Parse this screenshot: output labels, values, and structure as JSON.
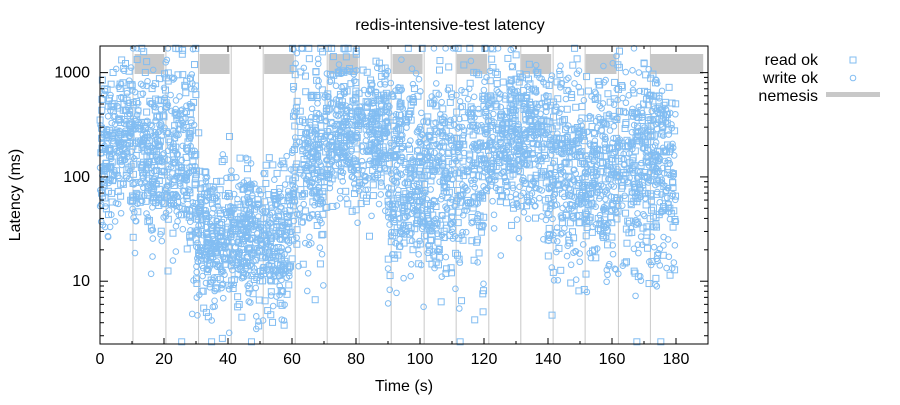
{
  "chart_data": {
    "type": "scatter",
    "title": "redis-intensive-test latency",
    "xlabel": "Time (s)",
    "ylabel": "Latency (ms)",
    "xlim": [
      0,
      190
    ],
    "ylim": [
      2.5,
      1800
    ],
    "yscale": "log",
    "x_ticks": [
      0,
      20,
      40,
      60,
      80,
      100,
      120,
      140,
      160,
      180
    ],
    "x_tick_labels": [
      "0",
      "20",
      "40",
      "60",
      "80",
      "100",
      "120",
      "140",
      "160",
      "180"
    ],
    "y_ticks": [
      10,
      100,
      1000
    ],
    "y_tick_labels": [
      "10",
      "100",
      "1000"
    ],
    "legend_position": "right",
    "grid": false,
    "nemesis_markers": [
      10.3,
      20.6,
      30.8,
      41.0,
      51.0,
      61.0,
      71.0,
      81.0,
      91.0,
      101.3,
      111.3,
      121.5,
      131.5,
      141.6,
      151.6,
      162.0,
      172.0
    ],
    "nemesis_intervals": [
      [
        10.8,
        20.1
      ],
      [
        31.1,
        40.5
      ],
      [
        51.3,
        60.6
      ],
      [
        71.4,
        80.6
      ],
      [
        91.4,
        100.8
      ],
      [
        111.5,
        121.0
      ],
      [
        131.6,
        141.0
      ],
      [
        151.8,
        161.4
      ],
      [
        172.0,
        188.5
      ]
    ],
    "series": [
      {
        "name": "read ok",
        "marker": "square",
        "color": "#82bdf2",
        "levels": [
          {
            "x_range": [
              0,
              5
            ],
            "median": 180,
            "spread": 0.35
          },
          {
            "x_range": [
              5,
              10
            ],
            "median": 260,
            "spread": 0.35
          },
          {
            "x_range": [
              10,
              20
            ],
            "median": 180,
            "spread": 0.4
          },
          {
            "x_range": [
              20,
              30
            ],
            "median": 160,
            "spread": 0.45
          },
          {
            "x_range": [
              30,
              60
            ],
            "median": 28,
            "spread": 0.35
          },
          {
            "x_range": [
              60,
              70
            ],
            "median": 160,
            "spread": 0.45
          },
          {
            "x_range": [
              70,
              90
            ],
            "median": 280,
            "spread": 0.35
          },
          {
            "x_range": [
              90,
              120
            ],
            "median": 110,
            "spread": 0.5
          },
          {
            "x_range": [
              120,
              140
            ],
            "median": 240,
            "spread": 0.35
          },
          {
            "x_range": [
              140,
              160
            ],
            "median": 110,
            "spread": 0.5
          },
          {
            "x_range": [
              160,
              180
            ],
            "median": 120,
            "spread": 0.5
          }
        ]
      },
      {
        "name": "write ok",
        "marker": "circle",
        "color": "#82bdf2",
        "levels": [
          {
            "x_range": [
              0,
              5
            ],
            "median": 160,
            "spread": 0.35
          },
          {
            "x_range": [
              5,
              10
            ],
            "median": 220,
            "spread": 0.35
          },
          {
            "x_range": [
              10,
              20
            ],
            "median": 160,
            "spread": 0.4
          },
          {
            "x_range": [
              20,
              30
            ],
            "median": 140,
            "spread": 0.45
          },
          {
            "x_range": [
              30,
              60
            ],
            "median": 25,
            "spread": 0.35
          },
          {
            "x_range": [
              60,
              70
            ],
            "median": 140,
            "spread": 0.45
          },
          {
            "x_range": [
              70,
              90
            ],
            "median": 240,
            "spread": 0.35
          },
          {
            "x_range": [
              90,
              120
            ],
            "median": 100,
            "spread": 0.5
          },
          {
            "x_range": [
              120,
              140
            ],
            "median": 210,
            "spread": 0.35
          },
          {
            "x_range": [
              140,
              160
            ],
            "median": 100,
            "spread": 0.5
          },
          {
            "x_range": [
              160,
              180
            ],
            "median": 110,
            "spread": 0.5
          }
        ]
      },
      {
        "name": "nemesis",
        "marker": "bar",
        "color": "#c8c8c8"
      }
    ]
  }
}
